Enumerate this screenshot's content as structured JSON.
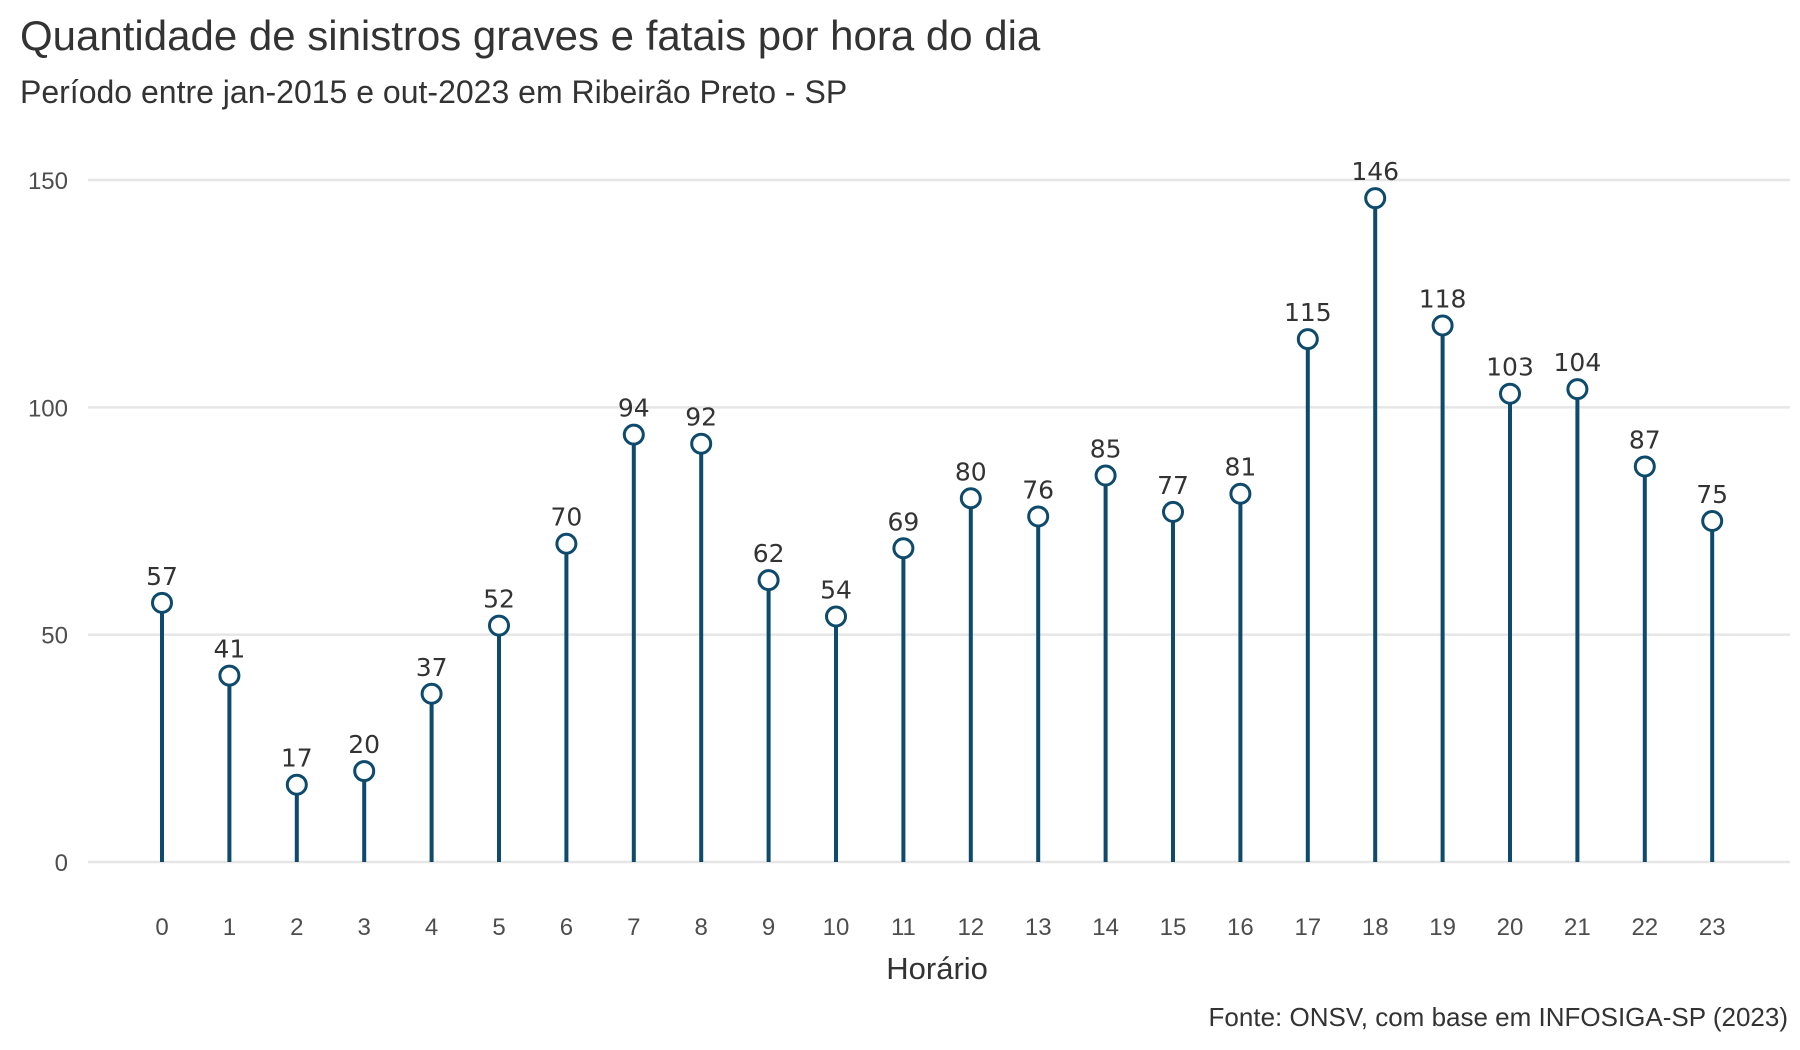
{
  "colors": {
    "series": "#0d4a6b",
    "grid": "#e6e6e6",
    "marker_fill": "#ffffff"
  },
  "chart_data": {
    "type": "lollipop",
    "title": "Quantidade de sinistros graves e fatais por hora do dia",
    "subtitle": "Período entre jan-2015 e out-2023 em Ribeirão Preto - SP",
    "caption": "Fonte: ONSV, com base em INFOSIGA-SP (2023)",
    "xlabel": "Horário",
    "ylabel": "",
    "categories": [
      "0",
      "1",
      "2",
      "3",
      "4",
      "5",
      "6",
      "7",
      "8",
      "9",
      "10",
      "11",
      "12",
      "13",
      "14",
      "15",
      "16",
      "17",
      "18",
      "19",
      "20",
      "21",
      "22",
      "23"
    ],
    "values": [
      57,
      41,
      17,
      20,
      37,
      52,
      70,
      94,
      92,
      62,
      54,
      69,
      80,
      76,
      85,
      77,
      81,
      115,
      146,
      118,
      103,
      104,
      87,
      75
    ],
    "ylim": [
      0,
      150
    ],
    "yticks": [
      0,
      50,
      100,
      150
    ],
    "grid": "horizontal",
    "legend": "none",
    "data_labels": true
  }
}
